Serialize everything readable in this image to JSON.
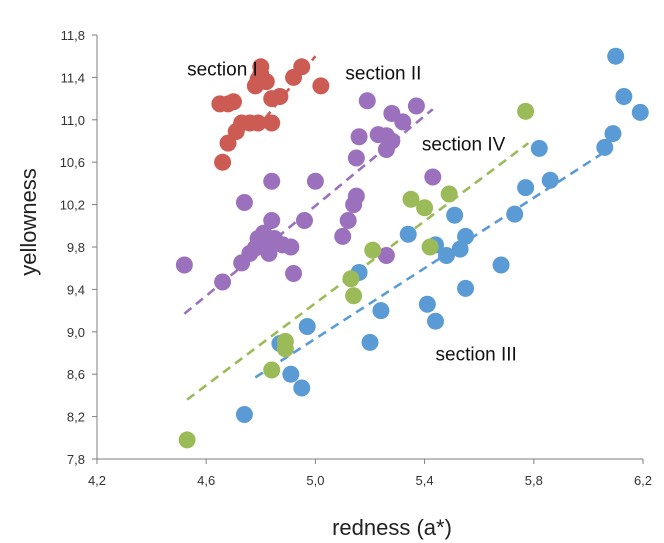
{
  "chart_data": {
    "type": "scatter",
    "xlabel": "redness (a*)",
    "ylabel": "yellowness",
    "xlim": [
      4.2,
      6.2
    ],
    "ylim": [
      7.8,
      11.8
    ],
    "xticks": [
      "4,2",
      "4,6",
      "5,0",
      "5,4",
      "5,8",
      "6,2"
    ],
    "xtick_values": [
      4.2,
      4.6,
      5.0,
      5.4,
      5.8,
      6.2
    ],
    "yticks": [
      "7,8",
      "8,2",
      "8,6",
      "9,0",
      "9,4",
      "9,8",
      "10,2",
      "10,6",
      "11,0",
      "11,4",
      "11,8"
    ],
    "ytick_values": [
      7.8,
      8.2,
      8.6,
      9.0,
      9.4,
      9.8,
      10.2,
      10.6,
      11.0,
      11.4,
      11.8
    ],
    "grid": false,
    "annotations": [
      {
        "text": "section I",
        "x": 4.53,
        "y": 11.42
      },
      {
        "text": "section II",
        "x": 5.11,
        "y": 11.38
      },
      {
        "text": "section IV",
        "x": 5.39,
        "y": 10.71
      },
      {
        "text": "section III",
        "x": 5.44,
        "y": 8.73
      }
    ],
    "series": [
      {
        "color": "#cc5c53",
        "trend": [
          [
            4.78,
            10.9
          ],
          [
            5.0,
            11.6
          ]
        ],
        "points": [
          [
            4.65,
            11.15
          ],
          [
            4.68,
            11.15
          ],
          [
            4.7,
            11.17
          ],
          [
            4.8,
            11.5
          ],
          [
            4.8,
            11.43
          ],
          [
            4.79,
            11.38
          ],
          [
            4.82,
            11.36
          ],
          [
            4.78,
            11.32
          ],
          [
            4.84,
            11.2
          ],
          [
            4.87,
            11.22
          ],
          [
            4.95,
            11.5
          ],
          [
            4.92,
            11.4
          ],
          [
            5.02,
            11.32
          ],
          [
            4.73,
            10.97
          ],
          [
            4.76,
            10.97
          ],
          [
            4.79,
            10.97
          ],
          [
            4.84,
            10.97
          ],
          [
            4.71,
            10.89
          ],
          [
            4.68,
            10.78
          ],
          [
            4.66,
            10.6
          ]
        ]
      },
      {
        "color": "#9b71bd",
        "trend": [
          [
            4.52,
            9.17
          ],
          [
            5.43,
            11.1
          ]
        ],
        "points": [
          [
            4.52,
            9.63
          ],
          [
            4.66,
            9.47
          ],
          [
            4.73,
            9.65
          ],
          [
            4.74,
            10.22
          ],
          [
            4.84,
            10.42
          ],
          [
            5.0,
            10.42
          ],
          [
            5.15,
            10.28
          ],
          [
            5.19,
            11.18
          ],
          [
            5.28,
            11.06
          ],
          [
            5.32,
            10.98
          ],
          [
            5.37,
            11.13
          ],
          [
            5.26,
            10.85
          ],
          [
            5.16,
            10.84
          ],
          [
            5.23,
            10.86
          ],
          [
            5.28,
            10.8
          ],
          [
            5.26,
            10.72
          ],
          [
            5.15,
            10.64
          ],
          [
            5.43,
            10.46
          ],
          [
            4.84,
            10.05
          ],
          [
            4.96,
            10.05
          ],
          [
            5.12,
            10.05
          ],
          [
            5.14,
            10.2
          ],
          [
            5.1,
            9.9
          ],
          [
            4.78,
            9.79
          ],
          [
            4.82,
            9.84
          ],
          [
            4.76,
            9.74
          ],
          [
            4.79,
            9.88
          ],
          [
            4.81,
            9.93
          ],
          [
            4.85,
            9.88
          ],
          [
            4.88,
            9.82
          ],
          [
            4.91,
            9.8
          ],
          [
            4.83,
            9.74
          ],
          [
            4.92,
            9.55
          ],
          [
            5.26,
            9.72
          ]
        ]
      },
      {
        "color": "#5b9bd5",
        "trend": [
          [
            4.78,
            8.57
          ],
          [
            6.05,
            10.68
          ]
        ],
        "points": [
          [
            6.1,
            11.6
          ],
          [
            6.13,
            11.22
          ],
          [
            6.19,
            11.07
          ],
          [
            6.09,
            10.87
          ],
          [
            6.06,
            10.74
          ],
          [
            5.82,
            10.73
          ],
          [
            5.86,
            10.43
          ],
          [
            5.77,
            10.36
          ],
          [
            5.73,
            10.11
          ],
          [
            5.51,
            10.1
          ],
          [
            5.34,
            9.92
          ],
          [
            5.44,
            9.82
          ],
          [
            5.53,
            9.78
          ],
          [
            5.55,
            9.9
          ],
          [
            5.48,
            9.72
          ],
          [
            5.68,
            9.63
          ],
          [
            5.16,
            9.56
          ],
          [
            5.55,
            9.41
          ],
          [
            5.41,
            9.26
          ],
          [
            5.24,
            9.2
          ],
          [
            5.44,
            9.1
          ],
          [
            4.97,
            9.05
          ],
          [
            5.2,
            8.9
          ],
          [
            4.87,
            8.89
          ],
          [
            4.91,
            8.6
          ],
          [
            4.95,
            8.47
          ],
          [
            4.74,
            8.22
          ]
        ]
      },
      {
        "color": "#9bbb59",
        "trend": [
          [
            4.53,
            8.36
          ],
          [
            5.78,
            10.78
          ]
        ],
        "points": [
          [
            4.53,
            7.98
          ],
          [
            4.84,
            8.64
          ],
          [
            4.89,
            8.91
          ],
          [
            4.89,
            8.84
          ],
          [
            5.13,
            9.5
          ],
          [
            5.14,
            9.34
          ],
          [
            5.21,
            9.77
          ],
          [
            5.42,
            9.8
          ],
          [
            5.35,
            10.25
          ],
          [
            5.4,
            10.17
          ],
          [
            5.49,
            10.3
          ],
          [
            5.77,
            11.08
          ]
        ]
      }
    ]
  }
}
